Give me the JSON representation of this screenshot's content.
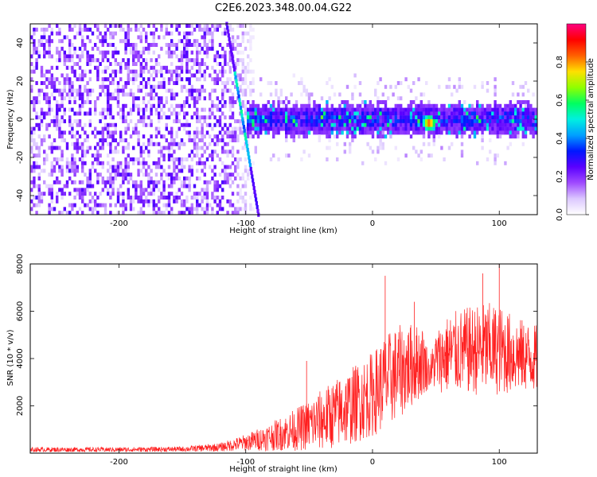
{
  "title": "C2E6.2023.348.00.04.G22",
  "chart_data": [
    {
      "type": "heatmap",
      "xlabel": "Height of straight line (km)",
      "ylabel": "Frequency (Hz)",
      "xlim": [
        -270,
        130
      ],
      "ylim": [
        -50,
        50
      ],
      "xticks": [
        -200,
        -100,
        0,
        100
      ],
      "yticks": [
        40,
        20,
        0,
        -20,
        -40
      ],
      "colorbar": {
        "label": "Normalized spectral amplitude",
        "range": [
          0,
          1
        ],
        "ticks": [
          0.0,
          0.2,
          0.4,
          0.6,
          0.8
        ],
        "colors": [
          "#ffffff",
          "#dcc8ff",
          "#a04bff",
          "#5a00ff",
          "#0018ff",
          "#00a0ff",
          "#00f0e0",
          "#00ff60",
          "#90ff00",
          "#ffe000",
          "#ff6000",
          "#ff0000",
          "#ff0080"
        ]
      },
      "features": {
        "noise_region_x": [
          -270,
          -90
        ],
        "signal_band_x": [
          -100,
          130
        ],
        "signal_band_center_hz": 0,
        "signal_band_halfwidth_hz": 8,
        "streak": {
          "x_top": -115,
          "y_top": 50,
          "x_bottom": -90,
          "y_bottom": -50
        },
        "peak": {
          "x": 45,
          "y": -2,
          "amplitude": 0.95
        }
      }
    },
    {
      "type": "line",
      "xlabel": "Height of straight line (km)",
      "ylabel": "SNR (10 * v/v)",
      "xlim": [
        -270,
        130
      ],
      "ylim": [
        0,
        8000
      ],
      "xticks": [
        -200,
        -100,
        0,
        100
      ],
      "yticks": [
        2000,
        4000,
        6000,
        8000
      ],
      "color": "#ff2020",
      "envelope": {
        "x": [
          -270,
          -200,
          -150,
          -120,
          -100,
          -80,
          -60,
          -40,
          -20,
          0,
          10,
          20,
          30,
          40,
          45,
          50,
          60,
          70,
          80,
          90,
          100,
          110,
          120,
          130
        ],
        "mean": [
          150,
          150,
          170,
          250,
          450,
          700,
          1000,
          1400,
          1900,
          2500,
          3000,
          3400,
          3700,
          3900,
          3400,
          3900,
          4200,
          4300,
          4350,
          4400,
          4350,
          4200,
          4100,
          4000
        ],
        "amp": [
          100,
          100,
          110,
          180,
          350,
          600,
          900,
          1300,
          1600,
          1800,
          2000,
          2000,
          1800,
          1500,
          600,
          1300,
          1700,
          1800,
          1900,
          2000,
          1900,
          1700,
          1500,
          1400
        ]
      },
      "spikes": [
        {
          "x": -52,
          "y": 3900
        },
        {
          "x": 10,
          "y": 7500
        },
        {
          "x": 33,
          "y": 6400
        },
        {
          "x": 87,
          "y": 7600
        },
        {
          "x": 100,
          "y": 8000
        }
      ]
    }
  ]
}
